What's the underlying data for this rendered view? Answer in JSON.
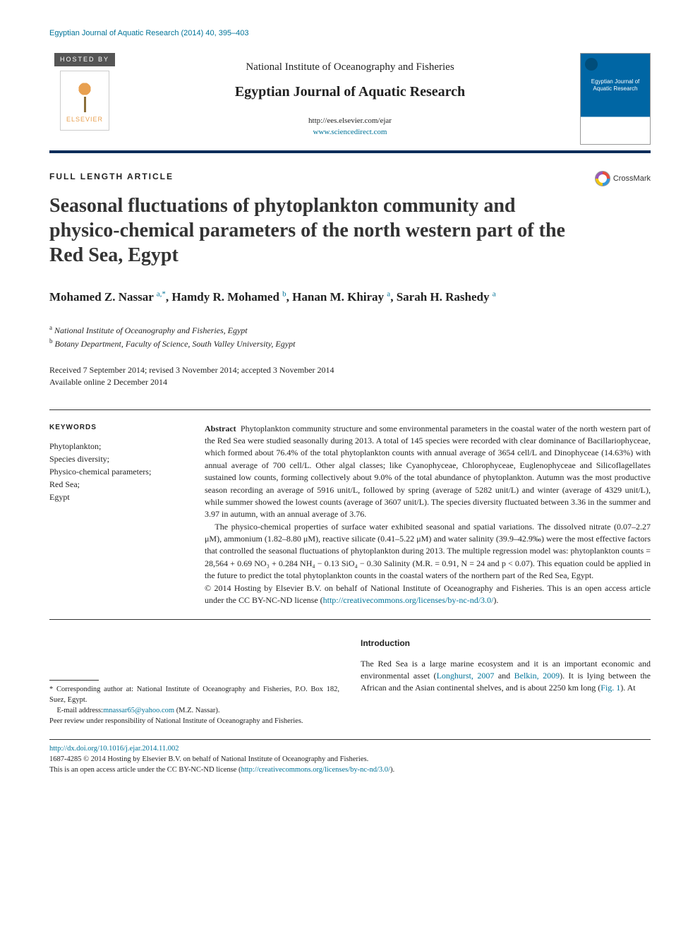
{
  "header_line": "Egyptian Journal of Aquatic Research (2014) 40, 395–403",
  "masthead": {
    "hosted_by_label": "HOSTED BY",
    "elsevier_label": "ELSEVIER",
    "institute": "National Institute of Oceanography and Fisheries",
    "journal": "Egyptian Journal of Aquatic Research",
    "url1": "http://ees.elsevier.com/ejar",
    "url2": "www.sciencedirect.com",
    "cover_text": "Egyptian Journal of Aquatic Research"
  },
  "crossmark_label": "CrossMark",
  "article_type": "FULL LENGTH ARTICLE",
  "title": "Seasonal fluctuations of phytoplankton community and physico-chemical parameters of the north western part of the Red Sea, Egypt",
  "authors_html": "Mohamed Z. Nassar <sup class='sup-blue'>a,*</sup>, Hamdy R. Mohamed <sup class='sup-blue'>b</sup>, Hanan M. Khiray <sup class='sup-blue'>a</sup>, Sarah H. Rashedy <sup class='sup-blue'>a</sup>",
  "affiliations": {
    "a": "National Institute of Oceanography and Fisheries, Egypt",
    "b": "Botany Department, Faculty of Science, South Valley University, Egypt"
  },
  "dates": {
    "received": "Received 7 September 2014; revised 3 November 2014; accepted 3 November 2014",
    "online": "Available online 2 December 2014"
  },
  "keywords": {
    "head": "KEYWORDS",
    "list": "Phytoplankton;\nSpecies diversity;\nPhysico-chemical parameters;\nRed Sea;\nEgypt"
  },
  "abstract": {
    "label": "Abstract",
    "p1": "Phytoplankton community structure and some environmental parameters in the coastal water of the north western part of the Red Sea were studied seasonally during 2013. A total of 145 species were recorded with clear dominance of Bacillariophyceae, which formed about 76.4% of the total phytoplankton counts with annual average of 3654 cell/L and Dinophyceae (14.63%) with annual average of 700 cell/L. Other algal classes; like Cyanophyceae, Chlorophyceae, Euglenophyceae and Silicoflagellates sustained low counts, forming collectively about 9.0% of the total abundance of phytoplankton. Autumn was the most productive season recording an average of 5916 unit/L, followed by spring (average of 5282 unit/L) and winter (average of 4329 unit/L), while summer showed the lowest counts (average of 3607 unit/L). The species diversity fluctuated between 3.36 in the summer and 3.97 in autumn, with an annual average of 3.76.",
    "p2": "The physico-chemical properties of surface water exhibited seasonal and spatial variations. The dissolved nitrate (0.07–2.27 μM), ammonium (1.82–8.80 μM), reactive silicate (0.41–5.22 μM) and water salinity (39.9–42.9‰) were the most effective factors that controlled the seasonal fluctuations of phytoplankton during 2013. The multiple regression model was: phytoplankton counts = 28,564 + 0.69 NO₃ + 0.284 NH₄ − 0.13 SiO₄ − 0.30 Salinity (M.R. = 0.91, N = 24 and p < 0.07). This equation could be applied in the future to predict the total phytoplankton counts in the coastal waters of the northern part of the Red Sea, Egypt.",
    "copyright": "© 2014 Hosting by Elsevier B.V. on behalf of National Institute of Oceanography and Fisheries. This is an open access article under the CC BY-NC-ND license (",
    "cc_link": "http://creativecommons.org/licenses/by-nc-nd/3.0/",
    "copyright_end": ")."
  },
  "corresponding": {
    "star": "* Corresponding author at: National Institute of Oceanography and Fisheries, P.O. Box 182, Suez, Egypt.",
    "email_label": "E-mail address: ",
    "email": "mnassar65@yahoo.com",
    "email_tail": " (M.Z. Nassar).",
    "peer": "Peer review under responsibility of National Institute of Oceanography and Fisheries."
  },
  "intro": {
    "head": "Introduction",
    "body_pre": "The Red Sea is a large marine ecosystem and it is an important economic and environmental asset (",
    "ref1": "Longhurst, 2007",
    "mid": " and ",
    "ref2": "Belkin, 2009",
    "body_post": "). It is lying between the African and the Asian continental shelves, and is about 2250 km long (",
    "fig": "Fig. 1",
    "tail": "). At"
  },
  "footer": {
    "doi": "http://dx.doi.org/10.1016/j.ejar.2014.11.002",
    "issn_line": "1687-4285 © 2014 Hosting by Elsevier B.V. on behalf of National Institute of Oceanography and Fisheries.",
    "cc_line": "This is an open access article under the CC BY-NC-ND license (",
    "cc_url": "http://creativecommons.org/licenses/by-nc-nd/3.0/",
    "cc_end": ")."
  },
  "colors": {
    "link": "#007398",
    "rule": "#0a2d5a"
  }
}
